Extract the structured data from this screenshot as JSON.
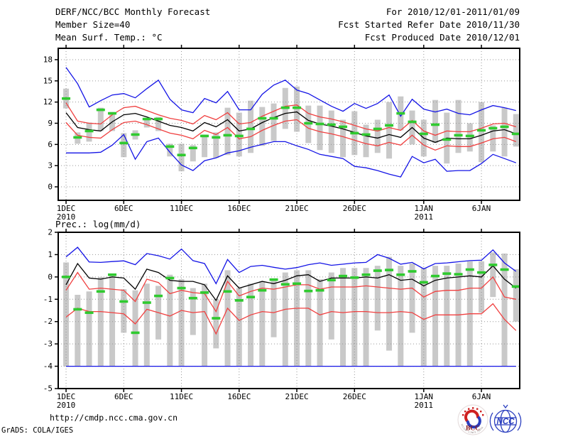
{
  "header": {
    "left": [
      "DERF/NCC/BCC Monthly Forecast",
      "Member Size=40"
    ],
    "right": [
      "For 2010/12/01-2011/01/09",
      "Fcst Started Refer Date 2010/11/30",
      "Fcst Produced Date 2010/12/01"
    ]
  },
  "colors": {
    "blue": "#1414e6",
    "red": "#f04040",
    "green": "#2fca2f",
    "gray": "#c9c9c9",
    "black": "#000000",
    "grid": "#969696",
    "logo_blue": "#2b3fbf",
    "logo_red": "#cf2020",
    "logo_dark_red": "#8c1a1a"
  },
  "chart_data": [
    {
      "name": "surface-temperature",
      "type": "line",
      "title": "Mean Surf. Temp.: °C",
      "x_ticks": [
        {
          "day": 0,
          "label": "1DEC",
          "sub": "2010"
        },
        {
          "day": 5,
          "label": "6DEC"
        },
        {
          "day": 10,
          "label": "11DEC"
        },
        {
          "day": 15,
          "label": "16DEC"
        },
        {
          "day": 20,
          "label": "21DEC"
        },
        {
          "day": 25,
          "label": "26DEC"
        },
        {
          "day": 31,
          "label": "1JAN",
          "sub": "2011"
        },
        {
          "day": 36,
          "label": "6JAN"
        }
      ],
      "x_range": [
        -0.68,
        39.32
      ],
      "y_range": [
        -1.91,
        19.61
      ],
      "y_ticks": [
        0,
        3,
        6,
        9,
        12,
        15,
        18
      ],
      "series": [
        {
          "name": "member-spread-bars",
          "color": "gray",
          "type": "bar",
          "ranges": [
            [
              11.1,
              13.9
            ],
            [
              6.1,
              7.7
            ],
            [
              6.4,
              9.1
            ],
            [
              7.9,
              11.2
            ],
            [
              7.9,
              10.6
            ],
            [
              4.2,
              7.6
            ],
            [
              6.7,
              8.0
            ],
            [
              8.4,
              9.6
            ],
            [
              7.9,
              9.9
            ],
            [
              4.3,
              6.1
            ],
            [
              2.2,
              6.1
            ],
            [
              3.6,
              5.9
            ],
            [
              4.2,
              7.4
            ],
            [
              4.1,
              7.7
            ],
            [
              4.5,
              11.2
            ],
            [
              4.3,
              10.5
            ],
            [
              4.8,
              12.2
            ],
            [
              5.8,
              11.3
            ],
            [
              6.5,
              11.8
            ],
            [
              8.2,
              14.0
            ],
            [
              7.8,
              14.2
            ],
            [
              6.2,
              11.5
            ],
            [
              5.2,
              11.5
            ],
            [
              4.8,
              10.8
            ],
            [
              4.2,
              9.5
            ],
            [
              4.5,
              10.7
            ],
            [
              4.2,
              8.8
            ],
            [
              4.8,
              9.5
            ],
            [
              4.0,
              12.0
            ],
            [
              8.0,
              12.8
            ],
            [
              6.0,
              10.8
            ],
            [
              4.3,
              9.5
            ],
            [
              6.2,
              12.3
            ],
            [
              3.3,
              10.5
            ],
            [
              4.8,
              12.3
            ],
            [
              5.0,
              9.0
            ],
            [
              3.5,
              12.0
            ],
            [
              5.0,
              8.7
            ],
            [
              4.3,
              11.2
            ],
            [
              5.7,
              10.3
            ]
          ]
        },
        {
          "name": "blue-max-line",
          "color": "blue",
          "type": "line",
          "values": [
            16.9,
            14.6,
            11.3,
            12.2,
            13.0,
            13.2,
            12.6,
            13.9,
            15.1,
            12.4,
            10.9,
            10.5,
            12.5,
            11.9,
            13.5,
            10.9,
            10.9,
            13.1,
            14.4,
            15.1,
            13.7,
            13.2,
            12.3,
            11.4,
            10.7,
            11.8,
            11.1,
            11.8,
            13.0,
            10.0,
            12.4,
            11.0,
            10.6,
            11.0,
            10.4,
            10.2,
            10.9,
            11.5,
            11.2,
            10.8
          ]
        },
        {
          "name": "red-upper-line",
          "color": "red",
          "type": "line",
          "values": [
            11.9,
            9.3,
            9.0,
            8.9,
            10.2,
            11.2,
            11.4,
            10.8,
            10.2,
            9.7,
            9.4,
            8.9,
            10.1,
            9.5,
            10.5,
            8.9,
            9.1,
            10.0,
            10.7,
            11.4,
            11.6,
            10.4,
            9.9,
            9.6,
            9.2,
            8.7,
            8.2,
            7.9,
            8.4,
            8.0,
            9.4,
            7.9,
            7.3,
            7.9,
            7.8,
            7.8,
            8.3,
            8.9,
            9.0,
            8.5
          ]
        },
        {
          "name": "ensemble-mean-line",
          "color": "black",
          "type": "line",
          "values": [
            10.5,
            8.4,
            8.1,
            7.9,
            9.2,
            10.2,
            10.4,
            9.9,
            9.3,
            8.7,
            8.4,
            7.9,
            9.1,
            8.5,
            9.5,
            7.9,
            8.2,
            9.1,
            9.8,
            10.4,
            10.6,
            9.4,
            8.9,
            8.6,
            8.2,
            7.7,
            7.2,
            6.9,
            7.4,
            7.0,
            8.4,
            6.9,
            6.3,
            6.9,
            6.8,
            6.8,
            7.3,
            7.9,
            8.1,
            7.5
          ]
        },
        {
          "name": "red-lower-line",
          "color": "red",
          "type": "line",
          "values": [
            9.1,
            7.3,
            7.0,
            6.9,
            8.1,
            9.1,
            9.3,
            8.8,
            8.2,
            7.6,
            7.3,
            6.8,
            8.0,
            7.4,
            8.4,
            6.8,
            7.1,
            8.0,
            8.7,
            9.3,
            9.5,
            8.3,
            7.8,
            7.5,
            7.1,
            6.6,
            6.1,
            5.8,
            6.3,
            5.9,
            7.3,
            5.9,
            5.2,
            5.8,
            5.7,
            5.7,
            6.2,
            6.8,
            7.0,
            6.4
          ]
        },
        {
          "name": "blue-min-line",
          "color": "blue",
          "type": "line",
          "values": [
            4.8,
            4.8,
            4.8,
            4.9,
            5.9,
            7.4,
            3.9,
            6.4,
            6.9,
            4.9,
            3.1,
            2.3,
            3.7,
            4.1,
            4.8,
            5.1,
            5.6,
            6.0,
            6.4,
            6.4,
            5.8,
            5.3,
            4.6,
            4.3,
            4.0,
            2.9,
            2.7,
            2.3,
            1.8,
            1.4,
            4.3,
            3.4,
            3.9,
            2.2,
            2.3,
            2.3,
            3.3,
            4.6,
            4.0,
            3.4
          ]
        },
        {
          "name": "obs-dashes",
          "color": "green",
          "type": "dash",
          "values": [
            12.5,
            7.0,
            7.9,
            10.9,
            10.4,
            6.2,
            7.4,
            9.6,
            9.6,
            5.7,
            4.5,
            5.5,
            7.2,
            7.0,
            7.3,
            7.2,
            8.2,
            9.7,
            9.7,
            11.2,
            11.2,
            9.0,
            8.9,
            8.8,
            8.5,
            7.6,
            7.4,
            8.2,
            8.7,
            10.4,
            9.2,
            7.5,
            8.8,
            6.7,
            7.3,
            7.2,
            8.0,
            8.3,
            8.5,
            7.5
          ]
        }
      ]
    },
    {
      "name": "precipitation",
      "type": "line",
      "title": "Prec.: log(mm/d)",
      "x_ticks": [
        {
          "day": 0,
          "label": "1DEC",
          "sub": "2010"
        },
        {
          "day": 5,
          "label": "6DEC"
        },
        {
          "day": 10,
          "label": "11DEC"
        },
        {
          "day": 15,
          "label": "16DEC"
        },
        {
          "day": 20,
          "label": "21DEC"
        },
        {
          "day": 25,
          "label": "26DEC"
        },
        {
          "day": 31,
          "label": "1JAN",
          "sub": "2011"
        },
        {
          "day": 36,
          "label": "6JAN"
        }
      ],
      "x_range": [
        -0.68,
        39.32
      ],
      "y_range": [
        -5,
        2
      ],
      "y_ticks": [
        2,
        1,
        0,
        -1,
        -2,
        -3,
        -4,
        -5
      ],
      "series": [
        {
          "name": "member-spread-bars",
          "color": "gray",
          "type": "bar",
          "ranges": [
            [
              -4,
              0.65
            ],
            [
              -4,
              -0.8
            ],
            [
              -4,
              -0.65
            ],
            [
              -4,
              0.0
            ],
            [
              -4,
              0.1
            ],
            [
              -2.5,
              -0.55
            ],
            [
              -4,
              -0.6
            ],
            [
              -4,
              -0.3
            ],
            [
              -2.8,
              -0.4
            ],
            [
              -4,
              0.1
            ],
            [
              -4,
              -0.1
            ],
            [
              -2.6,
              -0.5
            ],
            [
              -4,
              -0.3
            ],
            [
              -3.2,
              -1.0
            ],
            [
              -4,
              0.3
            ],
            [
              -4,
              -0.5
            ],
            [
              -4,
              -0.3
            ],
            [
              -4,
              -0.2
            ],
            [
              -2.7,
              -0.1
            ],
            [
              -4,
              0.2
            ],
            [
              -4,
              0.3
            ],
            [
              -4,
              0.3
            ],
            [
              -4,
              -0.1
            ],
            [
              -2.8,
              0.2
            ],
            [
              -4,
              0.4
            ],
            [
              -4,
              0.4
            ],
            [
              -4,
              0.4
            ],
            [
              -2.4,
              0.5
            ],
            [
              -3.3,
              0.9
            ],
            [
              -4,
              0.5
            ],
            [
              -2.5,
              0.6
            ],
            [
              -4,
              0.4
            ],
            [
              -4,
              0.5
            ],
            [
              -4,
              0.5
            ],
            [
              -4,
              0.6
            ],
            [
              -4,
              0.7
            ],
            [
              -1.6,
              0.7
            ],
            [
              -0.9,
              1.1
            ],
            [
              -4,
              1.05
            ],
            [
              -2.0,
              0.35
            ]
          ]
        },
        {
          "name": "blue-max-line",
          "color": "blue",
          "type": "line",
          "values": [
            0.9,
            1.33,
            0.67,
            0.65,
            0.69,
            0.72,
            0.55,
            1.05,
            0.95,
            0.8,
            1.25,
            0.73,
            0.6,
            -0.3,
            0.78,
            0.2,
            0.47,
            0.52,
            0.43,
            0.35,
            0.42,
            0.55,
            0.63,
            0.52,
            0.57,
            0.63,
            0.65,
            1.0,
            0.84,
            0.57,
            0.65,
            0.36,
            0.6,
            0.63,
            0.68,
            0.73,
            0.75,
            1.21,
            0.63,
            0.25
          ]
        },
        {
          "name": "red-upper-line",
          "color": "red",
          "type": "line",
          "values": [
            -0.6,
            0.2,
            -0.55,
            -0.5,
            -0.55,
            -0.6,
            -1.1,
            -0.1,
            -0.25,
            -0.75,
            -0.6,
            -0.7,
            -0.75,
            -1.55,
            -0.2,
            -0.85,
            -0.65,
            -0.5,
            -0.55,
            -0.45,
            -0.35,
            -0.35,
            -0.55,
            -0.45,
            -0.45,
            -0.45,
            -0.4,
            -0.45,
            -0.5,
            -0.55,
            -0.5,
            -0.9,
            -0.65,
            -0.6,
            -0.6,
            -0.5,
            -0.5,
            0.0,
            -0.9,
            -1.0
          ]
        },
        {
          "name": "ensemble-mean-line",
          "color": "black",
          "type": "line",
          "values": [
            -0.35,
            0.6,
            -0.05,
            -0.1,
            0.0,
            -0.05,
            -0.55,
            0.35,
            0.2,
            -0.15,
            -0.2,
            -0.2,
            -0.35,
            -1.05,
            0.05,
            -0.5,
            -0.35,
            -0.2,
            -0.3,
            -0.15,
            0.05,
            0.1,
            -0.2,
            -0.05,
            -0.05,
            -0.05,
            0.0,
            -0.05,
            0.1,
            -0.15,
            -0.1,
            -0.4,
            -0.15,
            -0.05,
            0.0,
            0.05,
            0.0,
            0.5,
            -0.1,
            -0.5
          ]
        },
        {
          "name": "red-lower-line",
          "color": "red",
          "type": "line",
          "values": [
            -1.8,
            -1.4,
            -1.55,
            -1.55,
            -1.6,
            -1.65,
            -2.1,
            -1.45,
            -1.6,
            -1.75,
            -1.5,
            -1.6,
            -1.55,
            -2.55,
            -1.4,
            -1.95,
            -1.7,
            -1.55,
            -1.6,
            -1.45,
            -1.4,
            -1.4,
            -1.7,
            -1.55,
            -1.6,
            -1.55,
            -1.55,
            -1.6,
            -1.6,
            -1.55,
            -1.6,
            -1.9,
            -1.7,
            -1.7,
            -1.7,
            -1.65,
            -1.65,
            -1.2,
            -1.9,
            -2.4
          ]
        },
        {
          "name": "blue-min-line",
          "color": "blue",
          "type": "line",
          "values": [
            -4,
            -4,
            -4,
            -4,
            -4,
            -4,
            -4,
            -4,
            -4,
            -4,
            -4,
            -4,
            -4,
            -4,
            -4,
            -4,
            -4,
            -4,
            -4,
            -4,
            -4,
            -4,
            -4,
            -4,
            -4,
            -4,
            -4,
            -4,
            -4,
            -4,
            -4,
            -4,
            -4,
            -4,
            -4,
            -4,
            -4,
            -4,
            -4,
            -4
          ]
        },
        {
          "name": "obs-dashes",
          "color": "green",
          "type": "dash",
          "values": [
            0.0,
            -1.45,
            -1.6,
            -0.65,
            0.1,
            -1.1,
            -2.5,
            -1.15,
            -0.85,
            -0.05,
            -0.5,
            -0.95,
            -0.7,
            -1.85,
            -0.65,
            -1.05,
            -0.9,
            -0.6,
            -0.12,
            -0.33,
            -0.3,
            -0.63,
            -0.6,
            -0.14,
            0.04,
            -0.03,
            0.1,
            0.28,
            0.31,
            0.1,
            0.25,
            -0.24,
            0.04,
            0.15,
            0.12,
            0.33,
            0.2,
            0.54,
            0.33,
            -0.43
          ]
        }
      ]
    }
  ],
  "footer": {
    "url": "http://cmdp.ncc.cma.gov.cn",
    "credit": "GrADS: COLA/IGES",
    "logos": [
      {
        "label": "BCC",
        "arc_text": "BEIJING CLIMATE CENTER"
      },
      {
        "label": "NCC"
      }
    ]
  }
}
